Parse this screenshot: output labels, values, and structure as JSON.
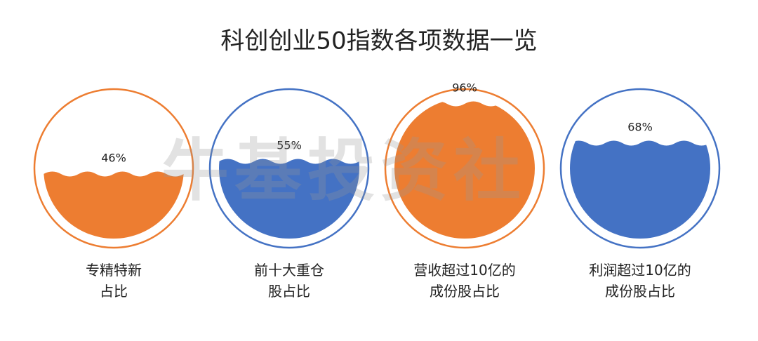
{
  "chart_data": {
    "type": "liquid",
    "title": "科创创业50指数各项数据一览",
    "watermark": "牛基投资社",
    "categories": [
      "专精特新\n占比",
      "前十大重仓\n股占比",
      "营收超过10亿的\n成份股占比",
      "利润超过10亿的\n成份股占比"
    ],
    "values": [
      46,
      55,
      96,
      68
    ],
    "value_labels": [
      "46%",
      "55%",
      "96%",
      "68%"
    ],
    "colors": [
      "#ed7d31",
      "#4472c4",
      "#ed7d31",
      "#4472c4"
    ],
    "ylim": [
      0,
      100
    ]
  }
}
